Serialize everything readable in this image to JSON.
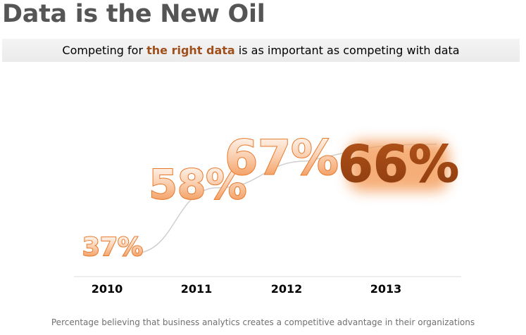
{
  "slide": {
    "title": "Data is the New Oil",
    "subtitle_pre": "Competing for ",
    "subtitle_highlight": "the right data",
    "subtitle_post": " is as important as competing with data",
    "caption": "Percentage believing  that business  analytics creates a competitive  advantage in their organizations"
  },
  "colors": {
    "accent": "#e8782a",
    "accent_dark": "#b4541a",
    "highlight_text": "#a0501c",
    "curve": "#cfcfcf"
  },
  "chart_data": {
    "type": "line",
    "categories": [
      "2010",
      "2011",
      "2012",
      "2013"
    ],
    "values": [
      37,
      58,
      67,
      66
    ],
    "data_labels": [
      "37%",
      "58%",
      "67%",
      "66%"
    ],
    "highlighted_category": "2013",
    "ylabel": "",
    "xlabel": ""
  }
}
